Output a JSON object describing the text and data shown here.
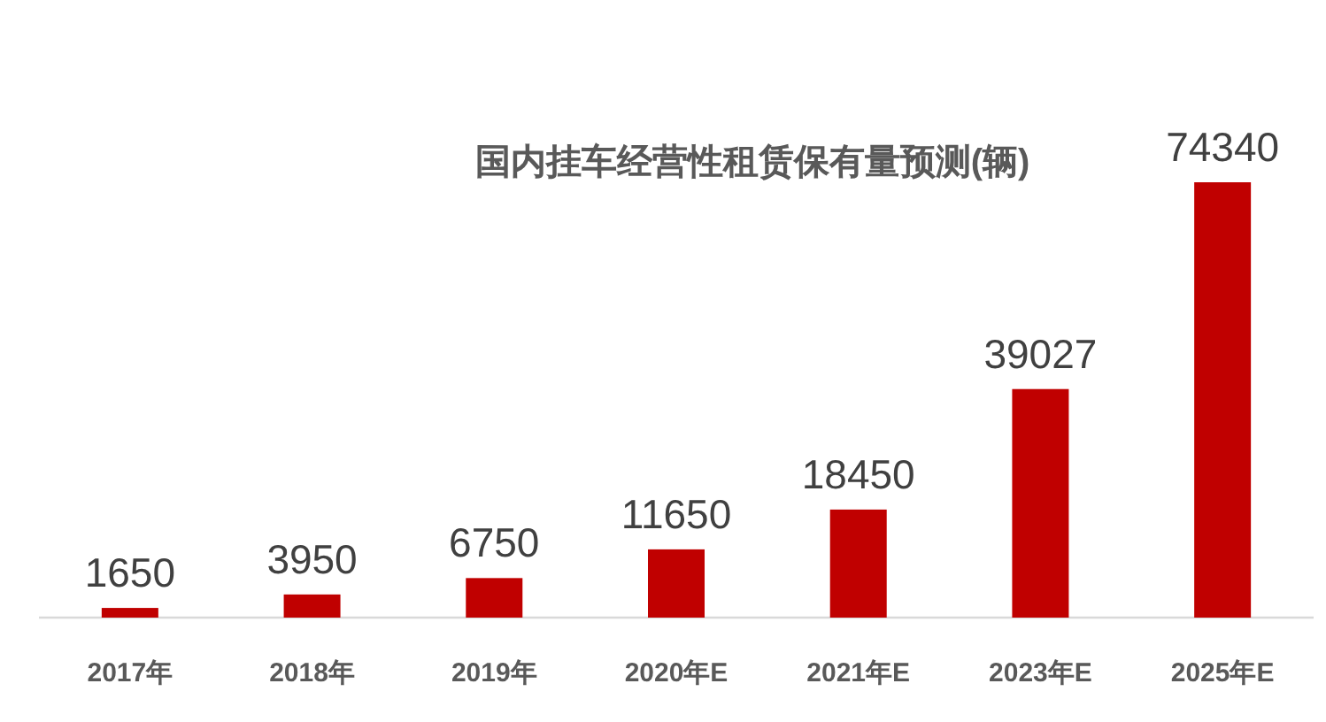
{
  "chart_data": {
    "type": "bar",
    "title": "国内挂车经营性租赁保有量预测(辆)",
    "categories": [
      "2017年",
      "2018年",
      "2019年",
      "2020年E",
      "2021年E",
      "2023年E",
      "2025年E"
    ],
    "values": [
      1650,
      3950,
      6750,
      11650,
      18450,
      39027,
      74340
    ],
    "color": "#c00000",
    "data_labels": true
  }
}
